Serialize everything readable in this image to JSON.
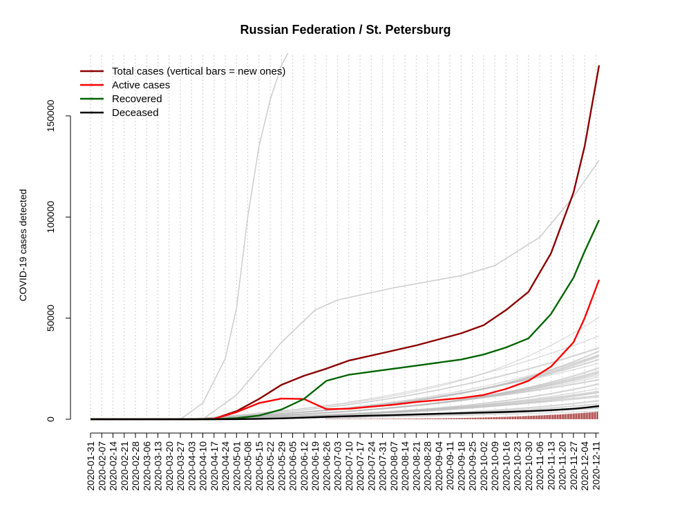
{
  "chart_data": {
    "type": "line",
    "title": "Russian Federation / St. Petersburg",
    "xlabel": "",
    "ylabel": "COVID-19 cases detected",
    "ylim": [
      0,
      180000
    ],
    "yticks": [
      0,
      50000,
      100000,
      150000
    ],
    "grid": "vertical dotted",
    "legend_position": "top-left",
    "xticks": [
      "2020-01-31",
      "2020-02-07",
      "2020-02-14",
      "2020-02-21",
      "2020-02-28",
      "2020-03-06",
      "2020-03-13",
      "2020-03-20",
      "2020-03-27",
      "2020-04-03",
      "2020-04-10",
      "2020-04-17",
      "2020-04-24",
      "2020-05-01",
      "2020-05-08",
      "2020-05-15",
      "2020-05-22",
      "2020-05-29",
      "2020-06-05",
      "2020-06-12",
      "2020-06-19",
      "2020-06-26",
      "2020-07-03",
      "2020-07-10",
      "2020-07-17",
      "2020-07-24",
      "2020-07-31",
      "2020-08-07",
      "2020-08-14",
      "2020-08-21",
      "2020-08-28",
      "2020-09-04",
      "2020-09-11",
      "2020-09-18",
      "2020-09-25",
      "2020-10-02",
      "2020-10-09",
      "2020-10-16",
      "2020-10-23",
      "2020-10-30",
      "2020-11-06",
      "2020-11-13",
      "2020-11-20",
      "2020-11-27",
      "2020-12-04",
      "2020-12-11"
    ],
    "x": [
      "2020-01-31",
      "2020-04-03",
      "2020-04-17",
      "2020-05-01",
      "2020-05-15",
      "2020-05-29",
      "2020-06-12",
      "2020-06-26",
      "2020-07-10",
      "2020-07-24",
      "2020-08-07",
      "2020-08-21",
      "2020-09-04",
      "2020-09-18",
      "2020-10-02",
      "2020-10-16",
      "2020-10-30",
      "2020-11-13",
      "2020-11-27",
      "2020-12-04",
      "2020-12-13"
    ],
    "series": [
      {
        "name": "Total cases (vertical bars = new ones)",
        "color": "#8b0000",
        "values": [
          0,
          0,
          200,
          4000,
          10000,
          17000,
          21500,
          25000,
          29000,
          31500,
          34000,
          36500,
          39500,
          42500,
          46500,
          54000,
          63000,
          82000,
          112000,
          135000,
          175000
        ]
      },
      {
        "name": "Active cases",
        "color": "#ff0000",
        "values": [
          0,
          0,
          200,
          3500,
          8000,
          10200,
          10000,
          5000,
          5200,
          6200,
          7200,
          8500,
          9500,
          10500,
          12000,
          15000,
          19000,
          26000,
          38000,
          50000,
          69000
        ]
      },
      {
        "name": "Recovered",
        "color": "#006400",
        "values": [
          0,
          0,
          0,
          500,
          1800,
          4800,
          10000,
          19000,
          22000,
          23500,
          25000,
          26500,
          28000,
          29500,
          32000,
          35500,
          40000,
          52000,
          70000,
          83000,
          98500
        ]
      },
      {
        "name": "Deceased",
        "color": "#000000",
        "values": [
          0,
          0,
          0,
          50,
          200,
          400,
          800,
          1200,
          1500,
          1800,
          2100,
          2400,
          2700,
          3000,
          3300,
          3600,
          4000,
          4500,
          5200,
          5700,
          6500
        ]
      }
    ],
    "new_cases_bars": {
      "color": "#8b0000",
      "x_start": "2020-06-26",
      "values_approx_end": 3500
    },
    "background_lines": {
      "color": "#bbbbbb",
      "count": 40
    }
  }
}
